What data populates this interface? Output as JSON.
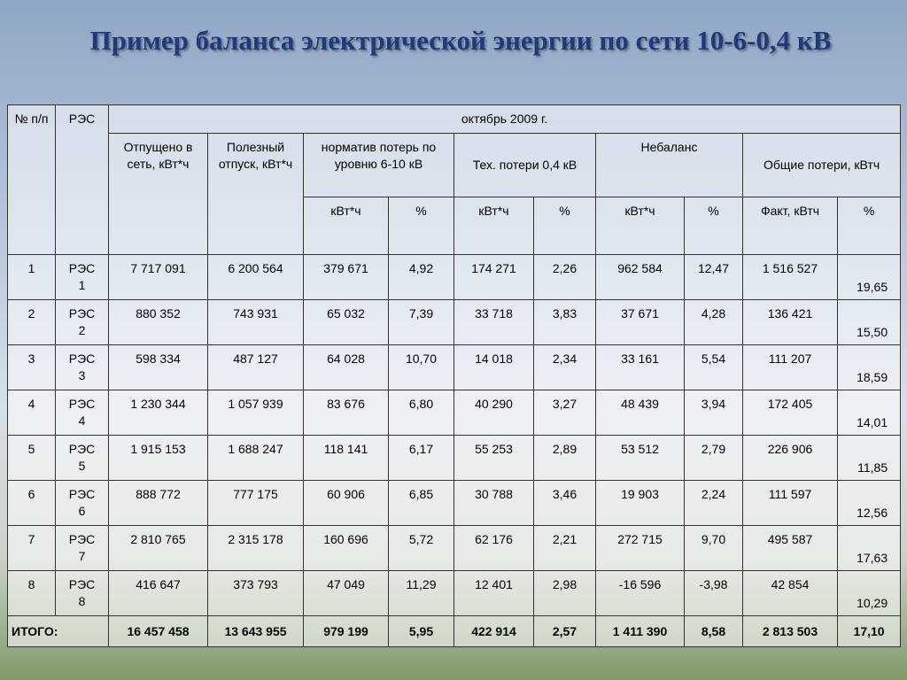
{
  "title": "Пример баланса электрической энергии по сети 10-6-0,4 кВ",
  "table": {
    "col_no": "№ п/п",
    "col_res": "РЭС",
    "period": "октябрь 2009 г.",
    "groups": [
      "Отпущено в сеть, кВт*ч",
      "Полезный отпуск, кВт*ч",
      "норматив потерь по уровню 6-10 кВ",
      "Тех. потери 0,4 кВ",
      "Небаланс",
      "Общие потери, кВтч"
    ],
    "subheaders": [
      "кВт*ч",
      "%",
      "кВт*ч",
      "%",
      "кВт*ч",
      "%",
      "Факт, кВтч",
      "%"
    ],
    "rows": [
      [
        "1",
        "РЭС 1",
        "7 717 091",
        "6 200 564",
        "379 671",
        "4,92",
        "174 271",
        "2,26",
        "962 584",
        "12,47",
        "1 516 527",
        "19,65"
      ],
      [
        "2",
        "РЭС 2",
        "880 352",
        "743 931",
        "65 032",
        "7,39",
        "33 718",
        "3,83",
        "37 671",
        "4,28",
        "136 421",
        "15,50"
      ],
      [
        "3",
        "РЭС 3",
        "598 334",
        "487 127",
        "64 028",
        "10,70",
        "14 018",
        "2,34",
        "33 161",
        "5,54",
        "111 207",
        "18,59"
      ],
      [
        "4",
        "РЭС 4",
        "1 230 344",
        "1 057 939",
        "83 676",
        "6,80",
        "40 290",
        "3,27",
        "48 439",
        "3,94",
        "172 405",
        "14,01"
      ],
      [
        "5",
        "РЭС 5",
        "1 915 153",
        "1 688 247",
        "118 141",
        "6,17",
        "55 253",
        "2,89",
        "53 512",
        "2,79",
        "226 906",
        "11,85"
      ],
      [
        "6",
        "РЭС 6",
        "888 772",
        "777 175",
        "60 906",
        "6,85",
        "30 788",
        "3,46",
        "19 903",
        "2,24",
        "111 597",
        "12,56"
      ],
      [
        "7",
        "РЭС 7",
        "2 810 765",
        "2 315 178",
        "160 696",
        "5,72",
        "62 176",
        "2,21",
        "272 715",
        "9,70",
        "495 587",
        "17,63"
      ],
      [
        "8",
        "РЭС 8",
        "416 647",
        "373 793",
        "47 049",
        "11,29",
        "12 401",
        "2,98",
        "-16 596",
        "-3,98",
        "42 854",
        "10,29"
      ]
    ],
    "total": [
      "ИТОГО:",
      "16 457 458",
      "13 643 955",
      "979 199",
      "5,95",
      "422 914",
      "2,57",
      "1 411 390",
      "8,58",
      "2 813 503",
      "17,10"
    ]
  }
}
